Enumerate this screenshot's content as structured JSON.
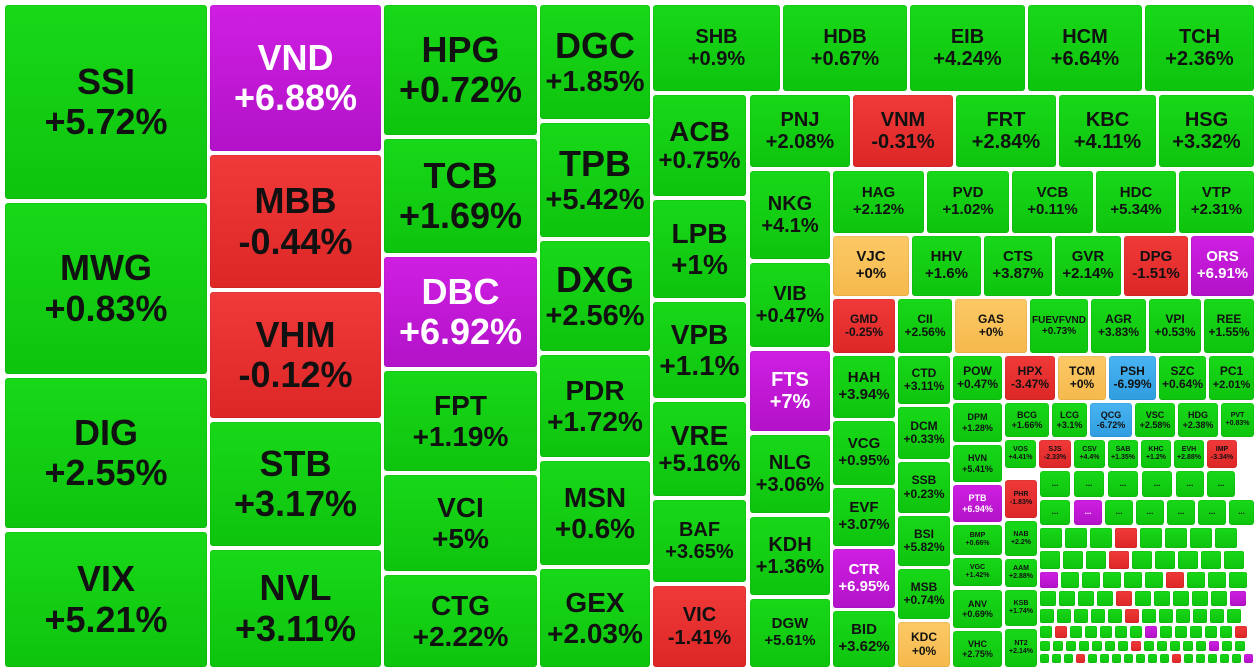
{
  "colors": {
    "up": "#12cc12",
    "down": "#e53030",
    "ceiling": "#c018d6",
    "reference": "#f8c05a",
    "floor": "#3aa9ea"
  },
  "more_label": "...",
  "chart_data": {
    "type": "treemap",
    "title": "",
    "items": [
      {
        "symbol": "SSI",
        "change": "+5.72%",
        "state": "up"
      },
      {
        "symbol": "MWG",
        "change": "+0.83%",
        "state": "up"
      },
      {
        "symbol": "DIG",
        "change": "+2.55%",
        "state": "up"
      },
      {
        "symbol": "VIX",
        "change": "+5.21%",
        "state": "up"
      },
      {
        "symbol": "VND",
        "change": "+6.88%",
        "state": "ceiling"
      },
      {
        "symbol": "MBB",
        "change": "-0.44%",
        "state": "down"
      },
      {
        "symbol": "VHM",
        "change": "-0.12%",
        "state": "down"
      },
      {
        "symbol": "STB",
        "change": "+3.17%",
        "state": "up"
      },
      {
        "symbol": "NVL",
        "change": "+3.11%",
        "state": "up"
      },
      {
        "symbol": "HPG",
        "change": "+0.72%",
        "state": "up"
      },
      {
        "symbol": "TCB",
        "change": "+1.69%",
        "state": "up"
      },
      {
        "symbol": "DBC",
        "change": "+6.92%",
        "state": "ceiling"
      },
      {
        "symbol": "FPT",
        "change": "+1.19%",
        "state": "up"
      },
      {
        "symbol": "VCI",
        "change": "+5%",
        "state": "up"
      },
      {
        "symbol": "CTG",
        "change": "+2.22%",
        "state": "up"
      },
      {
        "symbol": "DGC",
        "change": "+1.85%",
        "state": "up"
      },
      {
        "symbol": "TPB",
        "change": "+5.42%",
        "state": "up"
      },
      {
        "symbol": "DXG",
        "change": "+2.56%",
        "state": "up"
      },
      {
        "symbol": "PDR",
        "change": "+1.72%",
        "state": "up"
      },
      {
        "symbol": "MSN",
        "change": "+0.6%",
        "state": "up"
      },
      {
        "symbol": "GEX",
        "change": "+2.03%",
        "state": "up"
      },
      {
        "symbol": "SHB",
        "change": "+0.9%",
        "state": "up"
      },
      {
        "symbol": "HDB",
        "change": "+0.67%",
        "state": "up"
      },
      {
        "symbol": "EIB",
        "change": "+4.24%",
        "state": "up"
      },
      {
        "symbol": "HCM",
        "change": "+6.64%",
        "state": "up"
      },
      {
        "symbol": "TCH",
        "change": "+2.36%",
        "state": "up"
      },
      {
        "symbol": "ACB",
        "change": "+0.75%",
        "state": "up"
      },
      {
        "symbol": "LPB",
        "change": "+1%",
        "state": "up"
      },
      {
        "symbol": "VPB",
        "change": "+1.1%",
        "state": "up"
      },
      {
        "symbol": "VRE",
        "change": "+5.16%",
        "state": "up"
      },
      {
        "symbol": "BAF",
        "change": "+3.65%",
        "state": "up"
      },
      {
        "symbol": "VIC",
        "change": "-1.41%",
        "state": "down"
      },
      {
        "symbol": "PNJ",
        "change": "+2.08%",
        "state": "up"
      },
      {
        "symbol": "VNM",
        "change": "-0.31%",
        "state": "down"
      },
      {
        "symbol": "FRT",
        "change": "+2.84%",
        "state": "up"
      },
      {
        "symbol": "KBC",
        "change": "+4.11%",
        "state": "up"
      },
      {
        "symbol": "HSG",
        "change": "+3.32%",
        "state": "up"
      },
      {
        "symbol": "NKG",
        "change": "+4.1%",
        "state": "up"
      },
      {
        "symbol": "VIB",
        "change": "+0.47%",
        "state": "up"
      },
      {
        "symbol": "FTS",
        "change": "+7%",
        "state": "ceiling"
      },
      {
        "symbol": "NLG",
        "change": "+3.06%",
        "state": "up"
      },
      {
        "symbol": "KDH",
        "change": "+1.36%",
        "state": "up"
      },
      {
        "symbol": "DGW",
        "change": "+5.61%",
        "state": "up"
      },
      {
        "symbol": "HAG",
        "change": "+2.12%",
        "state": "up"
      },
      {
        "symbol": "PVD",
        "change": "+1.02%",
        "state": "up"
      },
      {
        "symbol": "VCB",
        "change": "+0.11%",
        "state": "up"
      },
      {
        "symbol": "HDC",
        "change": "+5.34%",
        "state": "up"
      },
      {
        "symbol": "VTP",
        "change": "+2.31%",
        "state": "up"
      },
      {
        "symbol": "VJC",
        "change": "+0%",
        "state": "reference"
      },
      {
        "symbol": "HHV",
        "change": "+1.6%",
        "state": "up"
      },
      {
        "symbol": "CTS",
        "change": "+3.87%",
        "state": "up"
      },
      {
        "symbol": "GVR",
        "change": "+2.14%",
        "state": "up"
      },
      {
        "symbol": "DPG",
        "change": "-1.51%",
        "state": "down"
      },
      {
        "symbol": "ORS",
        "change": "+6.91%",
        "state": "ceiling"
      },
      {
        "symbol": "GMD",
        "change": "-0.25%",
        "state": "down"
      },
      {
        "symbol": "CII",
        "change": "+2.56%",
        "state": "up"
      },
      {
        "symbol": "GAS",
        "change": "+0%",
        "state": "reference"
      },
      {
        "symbol": "FUEVFVND",
        "change": "+0.73%",
        "state": "up"
      },
      {
        "symbol": "AGR",
        "change": "+3.83%",
        "state": "up"
      },
      {
        "symbol": "VPI",
        "change": "+0.53%",
        "state": "up"
      },
      {
        "symbol": "REE",
        "change": "+1.55%",
        "state": "up"
      },
      {
        "symbol": "HAH",
        "change": "+3.94%",
        "state": "up"
      },
      {
        "symbol": "VCG",
        "change": "+0.95%",
        "state": "up"
      },
      {
        "symbol": "EVF",
        "change": "+3.07%",
        "state": "up"
      },
      {
        "symbol": "CTR",
        "change": "+6.95%",
        "state": "ceiling"
      },
      {
        "symbol": "BID",
        "change": "+3.62%",
        "state": "up"
      },
      {
        "symbol": "CTD",
        "change": "+3.11%",
        "state": "up"
      },
      {
        "symbol": "DCM",
        "change": "+0.33%",
        "state": "up"
      },
      {
        "symbol": "SSB",
        "change": "+0.23%",
        "state": "up"
      },
      {
        "symbol": "BSI",
        "change": "+5.82%",
        "state": "up"
      },
      {
        "symbol": "MSB",
        "change": "+0.74%",
        "state": "up"
      },
      {
        "symbol": "KDC",
        "change": "+0%",
        "state": "reference"
      },
      {
        "symbol": "POW",
        "change": "+0.47%",
        "state": "up"
      },
      {
        "symbol": "HPX",
        "change": "-3.47%",
        "state": "down"
      },
      {
        "symbol": "TCM",
        "change": "+0%",
        "state": "reference"
      },
      {
        "symbol": "PSH",
        "change": "-6.99%",
        "state": "floor"
      },
      {
        "symbol": "SZC",
        "change": "+0.64%",
        "state": "up"
      },
      {
        "symbol": "PC1",
        "change": "+2.01%",
        "state": "up"
      },
      {
        "symbol": "DPM",
        "change": "+1.28%",
        "state": "up"
      },
      {
        "symbol": "BCG",
        "change": "+1.66%",
        "state": "up"
      },
      {
        "symbol": "LCG",
        "change": "+3.1%",
        "state": "up"
      },
      {
        "symbol": "QCG",
        "change": "-6.72%",
        "state": "floor"
      },
      {
        "symbol": "VSC",
        "change": "+2.58%",
        "state": "up"
      },
      {
        "symbol": "HDG",
        "change": "+2.38%",
        "state": "up"
      },
      {
        "symbol": "PVT",
        "change": "+0.83%",
        "state": "up"
      },
      {
        "symbol": "HVN",
        "change": "+5.41%",
        "state": "up"
      },
      {
        "symbol": "VOS",
        "change": "+4.41%",
        "state": "up"
      },
      {
        "symbol": "SJS",
        "change": "-2.33%",
        "state": "down"
      },
      {
        "symbol": "CSV",
        "change": "+4.4%",
        "state": "up"
      },
      {
        "symbol": "SAB",
        "change": "+1.35%",
        "state": "up"
      },
      {
        "symbol": "KHC",
        "change": "+1.2%",
        "state": "up"
      },
      {
        "symbol": "EVH",
        "change": "+2.88%",
        "state": "up"
      },
      {
        "symbol": "IMP",
        "change": "-3.34%",
        "state": "down"
      },
      {
        "symbol": "PTB",
        "change": "+6.94%",
        "state": "ceiling"
      },
      {
        "symbol": "PHR",
        "change": "-1.83%",
        "state": "down"
      },
      {
        "symbol": "BMP",
        "change": "+0.66%",
        "state": "up"
      },
      {
        "symbol": "NAB",
        "change": "+2.2%",
        "state": "up"
      },
      {
        "symbol": "VGC",
        "change": "+1.42%",
        "state": "up"
      },
      {
        "symbol": "AAM",
        "change": "+2.88%",
        "state": "up"
      },
      {
        "symbol": "ANV",
        "change": "+0.69%",
        "state": "up"
      },
      {
        "symbol": "KSB",
        "change": "+1.74%",
        "state": "up"
      },
      {
        "symbol": "VHC",
        "change": "+2.75%",
        "state": "up"
      },
      {
        "symbol": "NT2",
        "change": "+2.14%",
        "state": "up"
      }
    ]
  }
}
